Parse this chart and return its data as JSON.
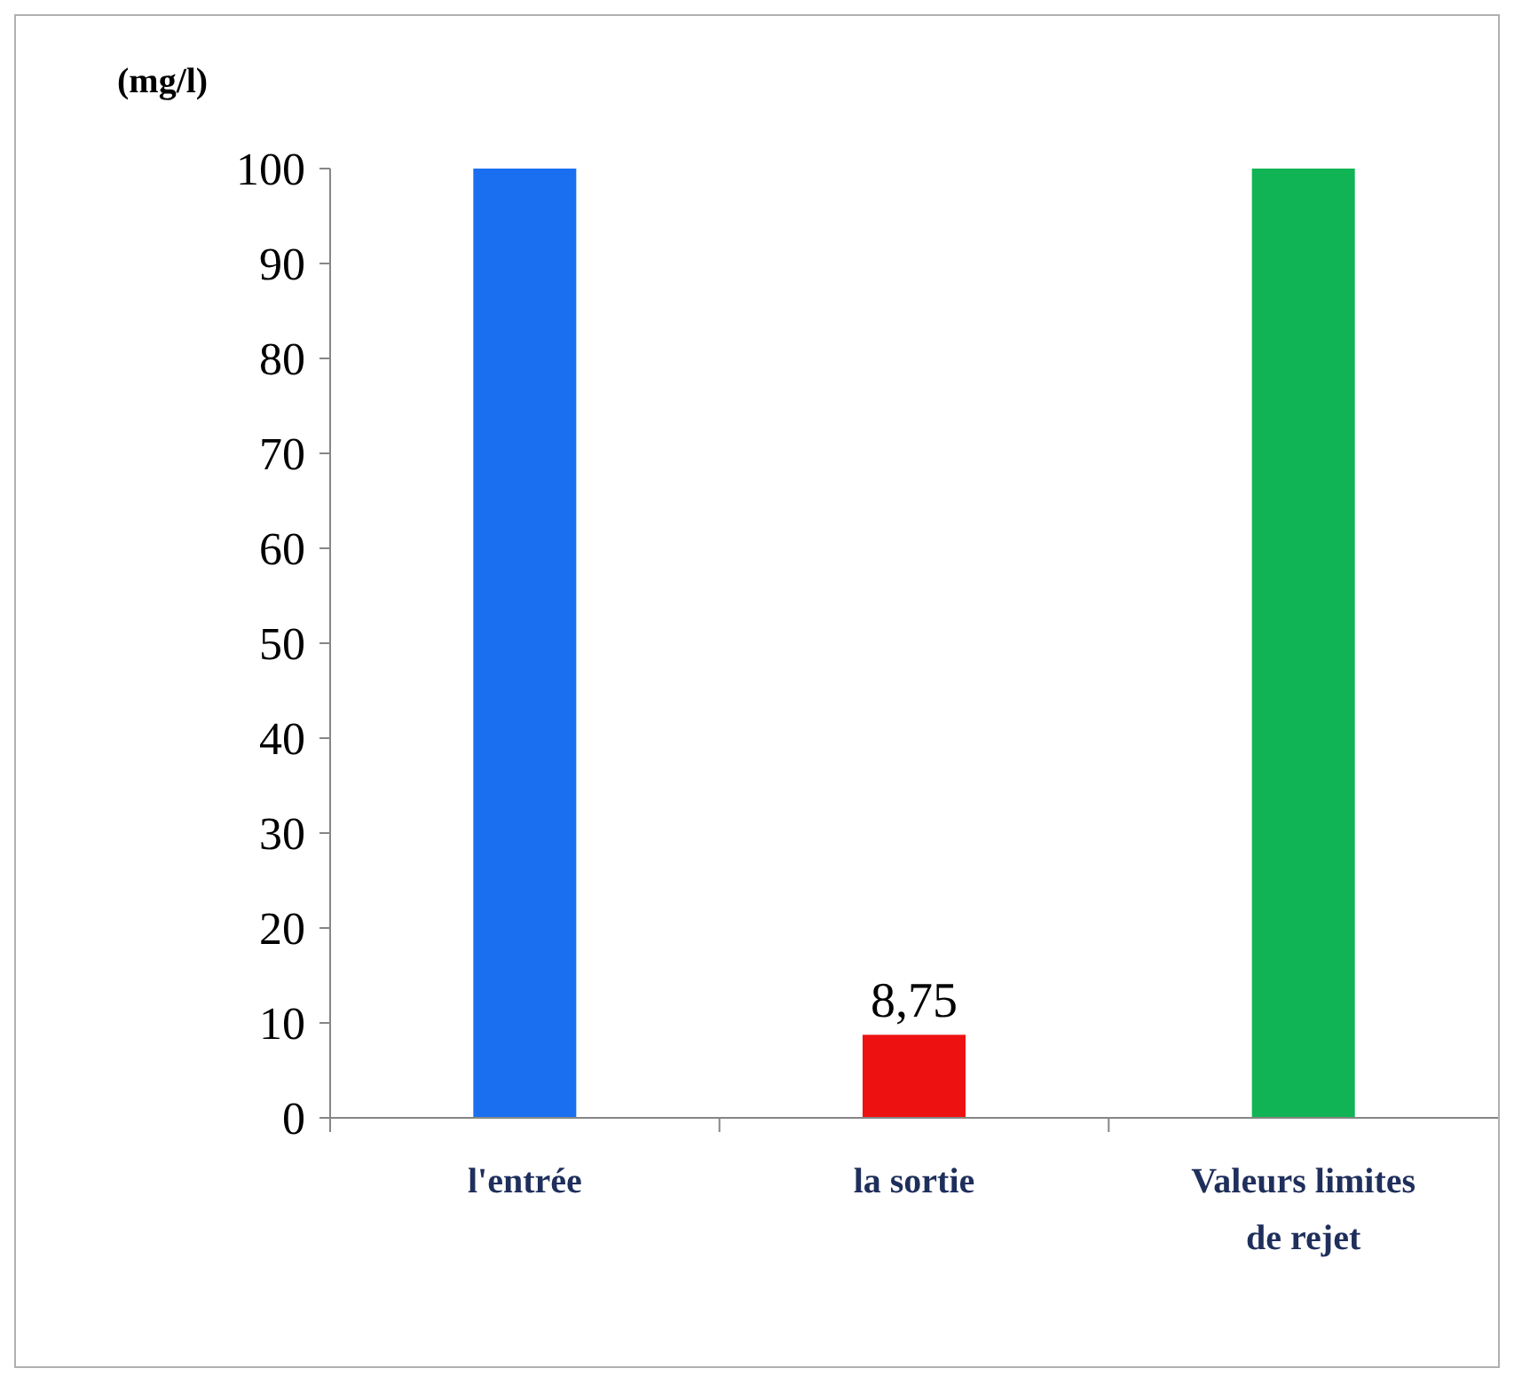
{
  "chart_data": {
    "type": "bar",
    "ylabel": "(mg/l)",
    "categories": [
      "l'entrée",
      "la sortie",
      "Valeurs limites de rejet"
    ],
    "values": [
      100,
      8.75,
      100
    ],
    "colors": [
      "#1a6ff0",
      "#ee1111",
      "#10b454"
    ],
    "value_labels": [
      null,
      "8,75",
      null
    ],
    "ylim": [
      0,
      100
    ],
    "yticks": [
      0,
      10,
      20,
      30,
      40,
      50,
      60,
      70,
      80,
      90,
      100
    ],
    "grid": false
  }
}
